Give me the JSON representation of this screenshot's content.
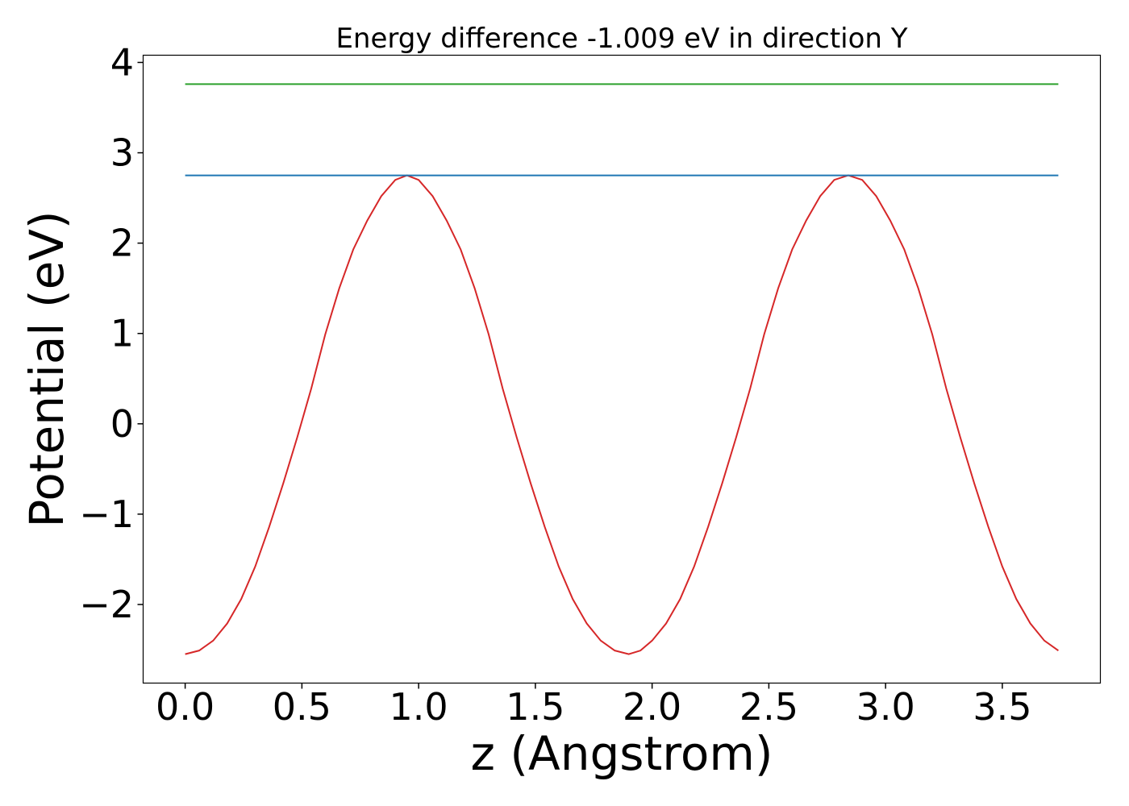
{
  "chart_data": {
    "type": "line",
    "title": "Energy difference -1.009 eV in direction Y",
    "xlabel": "z (Angstrom)",
    "ylabel": "Potential (eV)",
    "xlim": [
      -0.18,
      3.92
    ],
    "ylim": [
      -2.87,
      4.08
    ],
    "xticks": [
      0.0,
      0.5,
      1.0,
      1.5,
      2.0,
      2.5,
      3.0,
      3.5
    ],
    "xtick_labels": [
      "0.0",
      "0.5",
      "1.0",
      "1.5",
      "2.0",
      "2.5",
      "3.0",
      "3.5"
    ],
    "yticks": [
      -2,
      -1,
      0,
      1,
      2,
      3,
      4
    ],
    "ytick_labels": [
      "−2",
      "−1",
      "0",
      "1",
      "2",
      "3",
      "4"
    ],
    "grid": false,
    "series": [
      {
        "color": "#d62728",
        "x": [
          0.0,
          0.06,
          0.12,
          0.18,
          0.24,
          0.3,
          0.36,
          0.42,
          0.48,
          0.54,
          0.6,
          0.66,
          0.72,
          0.78,
          0.84,
          0.9,
          0.95,
          1.0,
          1.06,
          1.12,
          1.18,
          1.24,
          1.3,
          1.36,
          1.42,
          1.48,
          1.54,
          1.6,
          1.66,
          1.72,
          1.78,
          1.84,
          1.9,
          1.95,
          2.0,
          2.06,
          2.12,
          2.18,
          2.24,
          2.3,
          2.36,
          2.42,
          2.48,
          2.54,
          2.6,
          2.66,
          2.72,
          2.78,
          2.84,
          2.9,
          2.96,
          3.02,
          3.08,
          3.14,
          3.2,
          3.26,
          3.32,
          3.38,
          3.44,
          3.5,
          3.56,
          3.62,
          3.68,
          3.74
        ],
        "y": [
          -2.55,
          -2.51,
          -2.4,
          -2.21,
          -1.94,
          -1.58,
          -1.14,
          -0.66,
          -0.15,
          0.39,
          0.99,
          1.5,
          1.93,
          2.25,
          2.52,
          2.7,
          2.75,
          2.7,
          2.52,
          2.25,
          1.93,
          1.5,
          0.99,
          0.39,
          -0.15,
          -0.66,
          -1.14,
          -1.58,
          -1.94,
          -2.21,
          -2.4,
          -2.51,
          -2.55,
          -2.51,
          -2.4,
          -2.21,
          -1.94,
          -1.58,
          -1.14,
          -0.66,
          -0.15,
          0.39,
          0.99,
          1.5,
          1.93,
          2.25,
          2.52,
          2.7,
          2.75,
          2.7,
          2.52,
          2.25,
          1.93,
          1.5,
          0.99,
          0.39,
          -0.15,
          -0.66,
          -1.14,
          -1.58,
          -1.94,
          -2.21,
          -2.4,
          -2.51
        ]
      },
      {
        "color": "#1f77b4",
        "x": [
          0.0,
          3.74
        ],
        "y": [
          2.75,
          2.75
        ]
      },
      {
        "color": "#2ca02c",
        "x": [
          0.0,
          3.74
        ],
        "y": [
          3.76,
          3.76
        ]
      }
    ]
  }
}
